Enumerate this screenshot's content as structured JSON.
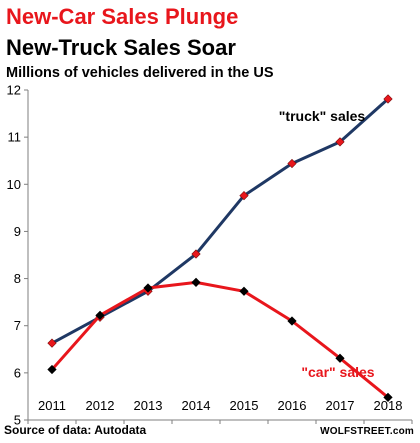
{
  "header": {
    "title": "New-Car Sales Plunge",
    "title_color": "#e8161c",
    "subtitle": "New-Truck Sales Soar",
    "caption": "Millions of vehicles delivered in the US"
  },
  "footer": {
    "source": "Source of data: Autodata",
    "brand": "WOLFSTREET.com"
  },
  "chart_data": {
    "type": "line",
    "title": "New-Car Sales Plunge",
    "subtitle": "New-Truck Sales Soar",
    "ylabel": "Millions of vehicles delivered in the US",
    "xlabel": "",
    "x": [
      "2011",
      "2012",
      "2013",
      "2014",
      "2015",
      "2016",
      "2017",
      "2018"
    ],
    "ylim": [
      5,
      12
    ],
    "yticks": [
      "5",
      "6",
      "7",
      "8",
      "9",
      "10",
      "11",
      "12"
    ],
    "grid": false,
    "series": [
      {
        "name": "\"truck\" sales",
        "values": [
          6.63,
          7.18,
          7.73,
          8.52,
          9.76,
          10.44,
          10.9,
          11.81
        ],
        "line_color": "#1f3864",
        "marker_color": "#e8161c"
      },
      {
        "name": "\"car\" sales",
        "values": [
          6.07,
          7.22,
          7.8,
          7.92,
          7.73,
          7.1,
          6.31,
          5.48
        ],
        "line_color": "#e8161c",
        "marker_color": "#000000"
      }
    ],
    "annotations": [
      {
        "text": "\"truck\" sales",
        "color": "#000000"
      },
      {
        "text": "\"car\" sales",
        "color": "#e8161c"
      }
    ]
  }
}
